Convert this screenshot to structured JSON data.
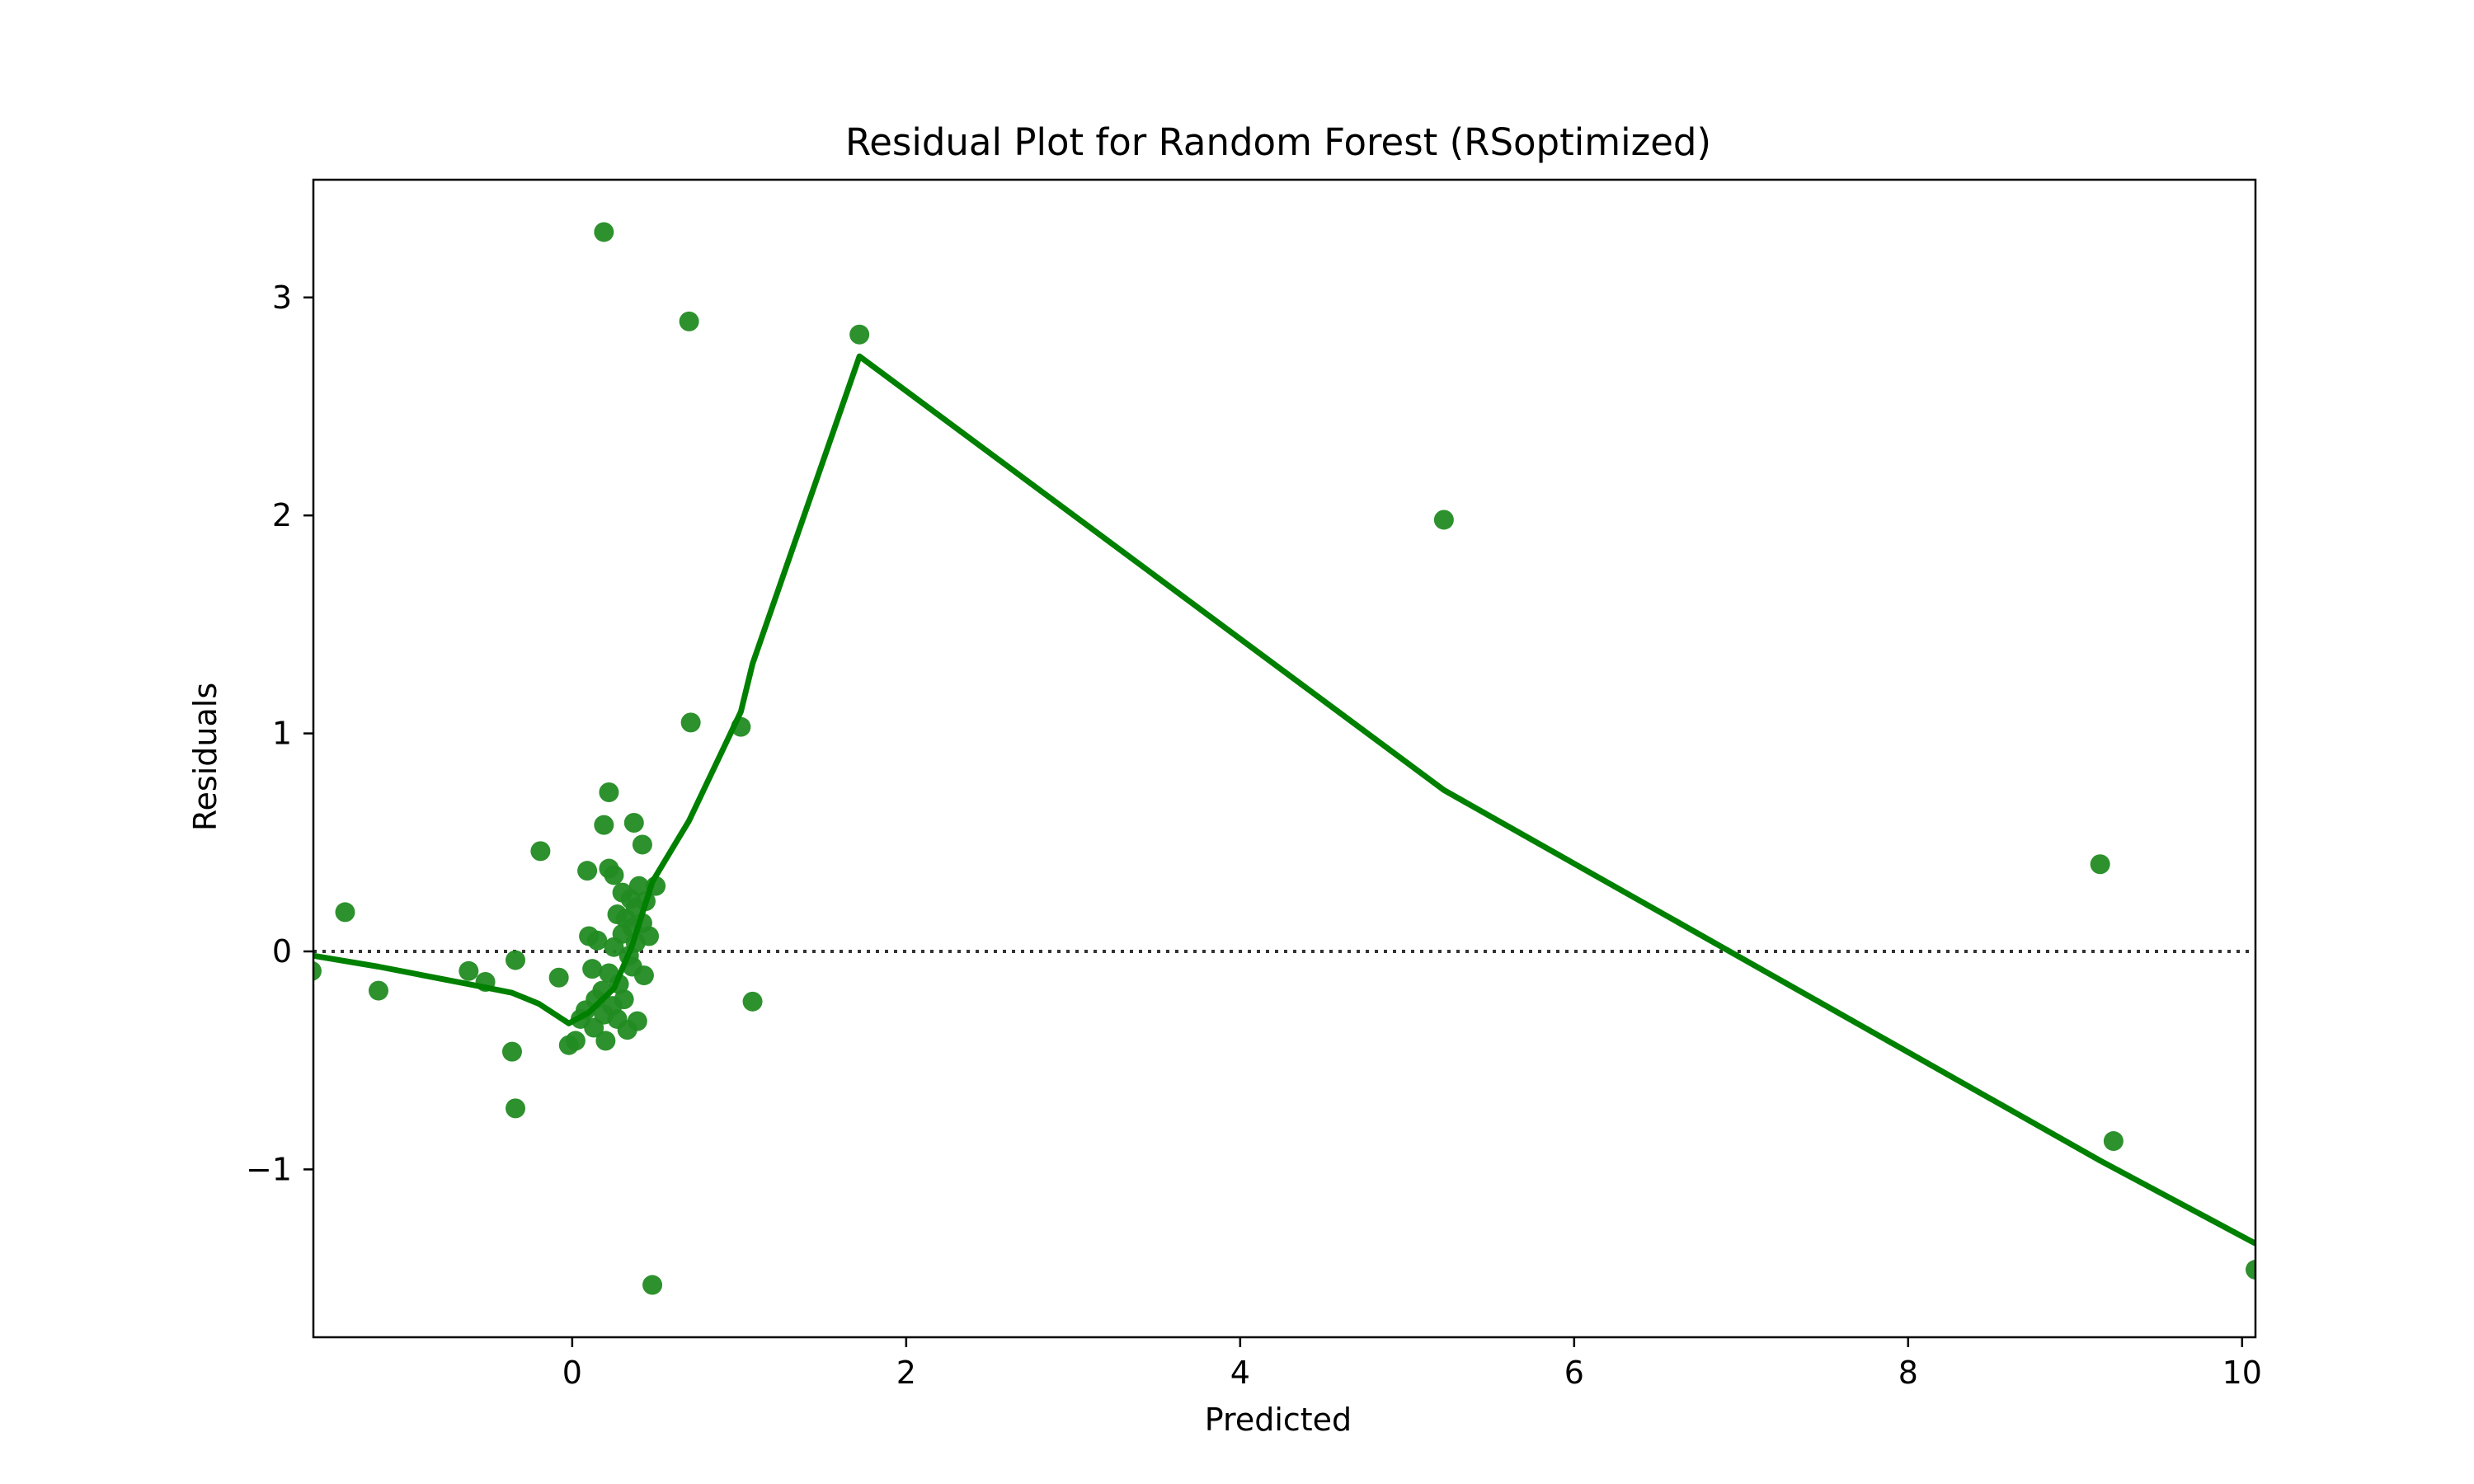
{
  "chart_data": {
    "type": "scatter",
    "title": "Residual Plot for Random Forest (RSoptimized)",
    "xlabel": "Predicted",
    "ylabel": "Residuals",
    "xlim": [
      -1.55,
      10.08
    ],
    "ylim": [
      -1.77,
      3.54
    ],
    "xticks": [
      0,
      2,
      4,
      6,
      8,
      10
    ],
    "yticks": [
      -1,
      0,
      1,
      2,
      3
    ],
    "xtick_labels": [
      "0",
      "2",
      "4",
      "6",
      "8",
      "10"
    ],
    "ytick_labels": [
      "−1",
      "0",
      "1",
      "2",
      "3"
    ],
    "grid": false,
    "legend": "none",
    "colors": {
      "points": "#228B22",
      "lowess": "#008000",
      "zero_line": "#333333"
    },
    "zero_line": {
      "y": 0,
      "style": "dotted"
    },
    "points": [
      {
        "x": 0.19,
        "y": 3.3
      },
      {
        "x": 0.7,
        "y": 2.89
      },
      {
        "x": 1.72,
        "y": 2.83
      },
      {
        "x": 5.22,
        "y": 1.98
      },
      {
        "x": 0.71,
        "y": 1.05
      },
      {
        "x": 1.01,
        "y": 1.03
      },
      {
        "x": 0.22,
        "y": 0.73
      },
      {
        "x": 0.19,
        "y": 0.58
      },
      {
        "x": 0.37,
        "y": 0.59
      },
      {
        "x": 0.42,
        "y": 0.49
      },
      {
        "x": -0.19,
        "y": 0.46
      },
      {
        "x": 0.09,
        "y": 0.37
      },
      {
        "x": 0.22,
        "y": 0.38
      },
      {
        "x": 0.25,
        "y": 0.35
      },
      {
        "x": 9.15,
        "y": 0.4
      },
      {
        "x": -1.36,
        "y": 0.18
      },
      {
        "x": 0.4,
        "y": 0.3
      },
      {
        "x": 0.5,
        "y": 0.3
      },
      {
        "x": 0.3,
        "y": 0.27
      },
      {
        "x": 0.35,
        "y": 0.24
      },
      {
        "x": 0.44,
        "y": 0.23
      },
      {
        "x": 0.38,
        "y": 0.2
      },
      {
        "x": 0.27,
        "y": 0.17
      },
      {
        "x": 0.32,
        "y": 0.15
      },
      {
        "x": 0.42,
        "y": 0.13
      },
      {
        "x": 0.36,
        "y": 0.11
      },
      {
        "x": 0.46,
        "y": 0.07
      },
      {
        "x": 0.1,
        "y": 0.07
      },
      {
        "x": 0.15,
        "y": 0.05
      },
      {
        "x": 0.3,
        "y": 0.08
      },
      {
        "x": 0.38,
        "y": 0.04
      },
      {
        "x": 0.25,
        "y": 0.02
      },
      {
        "x": 0.34,
        "y": -0.02
      },
      {
        "x": -1.56,
        "y": -0.09
      },
      {
        "x": -0.62,
        "y": -0.09
      },
      {
        "x": -0.52,
        "y": -0.14
      },
      {
        "x": -1.16,
        "y": -0.18
      },
      {
        "x": -0.34,
        "y": -0.04
      },
      {
        "x": -0.08,
        "y": -0.12
      },
      {
        "x": 0.12,
        "y": -0.08
      },
      {
        "x": 0.43,
        "y": -0.11
      },
      {
        "x": 0.36,
        "y": -0.07
      },
      {
        "x": 0.22,
        "y": -0.1
      },
      {
        "x": 0.28,
        "y": -0.15
      },
      {
        "x": 0.18,
        "y": -0.18
      },
      {
        "x": 0.31,
        "y": -0.22
      },
      {
        "x": 0.24,
        "y": -0.25
      },
      {
        "x": 0.14,
        "y": -0.22
      },
      {
        "x": 0.08,
        "y": -0.27
      },
      {
        "x": 0.19,
        "y": -0.29
      },
      {
        "x": 0.27,
        "y": -0.31
      },
      {
        "x": 0.05,
        "y": -0.31
      },
      {
        "x": 0.39,
        "y": -0.32
      },
      {
        "x": 0.33,
        "y": -0.36
      },
      {
        "x": 0.13,
        "y": -0.35
      },
      {
        "x": 0.2,
        "y": -0.41
      },
      {
        "x": 0.02,
        "y": -0.41
      },
      {
        "x": -0.02,
        "y": -0.43
      },
      {
        "x": 1.08,
        "y": -0.23
      },
      {
        "x": -0.36,
        "y": -0.46
      },
      {
        "x": -0.34,
        "y": -0.72
      },
      {
        "x": 9.23,
        "y": -0.87
      },
      {
        "x": 0.48,
        "y": -1.53
      },
      {
        "x": 10.08,
        "y": -1.46
      }
    ],
    "lowess_line": [
      {
        "x": -1.55,
        "y": -0.02
      },
      {
        "x": -1.16,
        "y": -0.07
      },
      {
        "x": -0.62,
        "y": -0.15
      },
      {
        "x": -0.36,
        "y": -0.19
      },
      {
        "x": -0.2,
        "y": -0.24
      },
      {
        "x": -0.02,
        "y": -0.33
      },
      {
        "x": 0.1,
        "y": -0.28
      },
      {
        "x": 0.25,
        "y": -0.17
      },
      {
        "x": 0.36,
        "y": 0.03
      },
      {
        "x": 0.48,
        "y": 0.32
      },
      {
        "x": 0.7,
        "y": 0.6
      },
      {
        "x": 1.01,
        "y": 1.1
      },
      {
        "x": 1.08,
        "y": 1.32
      },
      {
        "x": 1.72,
        "y": 2.73
      },
      {
        "x": 5.22,
        "y": 0.74
      },
      {
        "x": 9.15,
        "y": -0.96
      },
      {
        "x": 10.08,
        "y": -1.34
      }
    ]
  }
}
